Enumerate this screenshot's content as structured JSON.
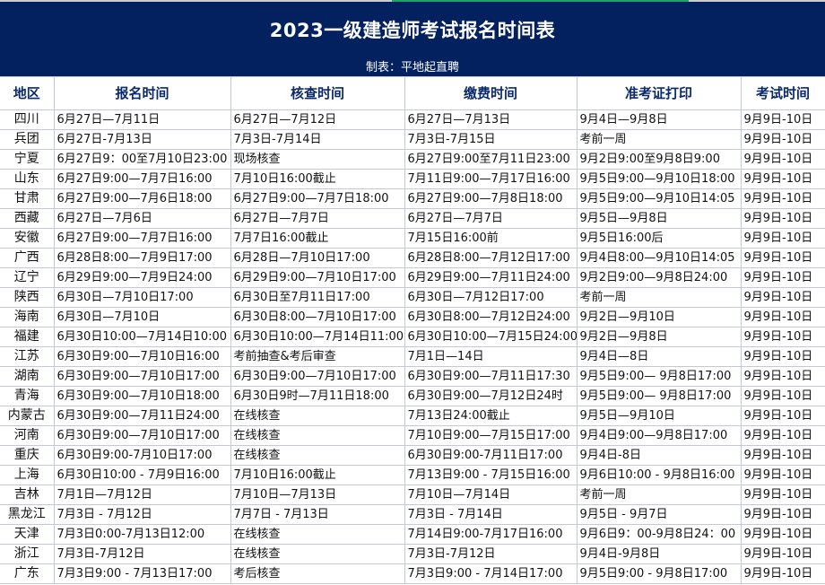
{
  "header": {
    "title": "2023一级建造师考试报名时间表",
    "maker": "制表：平地起直聘"
  },
  "colors": {
    "banner": "#03215e",
    "header_text": "#0b2a6a",
    "grid": "#c3c9da"
  },
  "table": {
    "columns": [
      "地区",
      "报名时间",
      "核查时间",
      "缴费时间",
      "准考证打印",
      "考试时间"
    ],
    "rows": [
      [
        "四川",
        "6月27日—7月11日",
        "6月27日—7月12日",
        "6月27日—7月13日",
        "9月4日—9月8日",
        "9月9日-10日"
      ],
      [
        "兵团",
        "6月27日-7月13日",
        "7月3日-7月14日",
        "7月3日-7月15日",
        "考前一周",
        "9月9日-10日"
      ],
      [
        "宁夏",
        "6月27日9：00至7月10日23:00",
        "现场核查",
        "6月27日9:00至7月11日23:00",
        "9月2日9:00至9月8日9:00",
        "9月9日-10日"
      ],
      [
        "山东",
        "6月27日9:00—7月7日16:00",
        "7月10日16:00截止",
        "7月11日9:00—7月17日16:00",
        "9月5日9:00—9月10日18:00",
        "9月9日-10日"
      ],
      [
        "甘肃",
        "6月27日9:00—7月6日18:00",
        "6月27日9:00—7月7日18:00",
        "6月27日9:00—7月8日18:00",
        "9月5日9:00—9月10日14:05",
        "9月9日-10日"
      ],
      [
        "西藏",
        "6月27日—7月6日",
        "6月27日—7月7日",
        "6月27日—7月7日",
        "9月5日—9月8日",
        "9月9日-10日"
      ],
      [
        "安徽",
        "6月27日9:00—7月7日16:00",
        "7月7日16:00截止",
        "7月15日16:00前",
        "9月5日16:00后",
        "9月9日-10日"
      ],
      [
        "广西",
        "6月28日8:00—7月9日17:00",
        "6月28日—7月10日17:00",
        "6月28日8:00—7月12日17:00",
        "9月4日8:00—9月10日14:05",
        "9月9日-10日"
      ],
      [
        "辽宁",
        "6月29日9:00—7月9日24:00",
        "6月29日9:00—7月10日17:00",
        "6月29日9:00—7月11日24:00",
        "9月2日9:00—9月8日24:00",
        "9月9日-10日"
      ],
      [
        "陕西",
        "6月30日—7月10日17:00",
        "6月30日至7月11日17:00",
        "6月30日—7月12日17:00",
        "考前一周",
        "9月9日-10日"
      ],
      [
        "海南",
        "6月30日—7月10日",
        "6月30日8:00—7月10日17:00",
        "6月30日8:00—7月12日24:00",
        "9月2日—9月10日",
        "9月9日-10日"
      ],
      [
        "福建",
        "6月30日10:00—7月14日10:00",
        "6月30日10:00—7月14日11:00",
        "6月30日10:00—7月15日24:00",
        "9月2日—9月8日",
        "9月9日-10日"
      ],
      [
        "江苏",
        "6月30日9:00—7月10日16:00",
        "考前抽查&考后审查",
        "7月1日—14日",
        "9月4日—8日",
        "9月9日-10日"
      ],
      [
        "湖南",
        "6月30日9:00—7月10日17:00",
        "6月30日9:00—7月10日17:00",
        "6月30日9:00—7月11日17:30",
        "9月5日9:00— 9月8日17:00",
        "9月9日-10日"
      ],
      [
        "青海",
        "6月30日9:00—7月10日18:00",
        "6月30日9时—7月11日18:00",
        "6月30日9:00—7月12日24时",
        "9月5日9:00— 9月8日17:00",
        "9月9日-10日"
      ],
      [
        "内蒙古",
        "6月30日9:00—7月11日24:00",
        "在线核查",
        "7月13日24:00截止",
        "9月5日—9月10日",
        "9月9日-10日"
      ],
      [
        "河南",
        "6月30日9:00—7月10日17:00",
        "在线核查",
        "7月10日9:00—7月15日17:00",
        "9月4日9:00—9月8日17:00",
        "9月9日-10日"
      ],
      [
        "重庆",
        "6月30日9:00-7月10日17:00",
        "在线核查",
        "6月30日9:00-7月11日17:00",
        "9月4日-8日",
        "9月9日-10日"
      ],
      [
        "上海",
        "6月30日10:00 - 7月9日16:00",
        "7月10日16:00截止",
        "7月13日9:00 - 7月15日16:00",
        "9月6日10:00 - 9月8日16:00",
        "9月9日-10日"
      ],
      [
        "吉林",
        "7月1日—7月12日",
        "7月10日—7月13日",
        "7月10日—7月14日",
        "考前一周",
        "9月9日-10日"
      ],
      [
        "黑龙江",
        "7月3日 - 7月12日",
        "7月7日 - 7月13日",
        "7月3日 - 7月14日",
        "9月5日 - 9月7日",
        "9月9日-10日"
      ],
      [
        "天津",
        "7月3日0:00-7月13日12:00",
        "在线核查",
        "7月14日9:00-7月17日16:00",
        "9月6日9：00-9月8日24：00",
        "9月9日-10日"
      ],
      [
        "浙江",
        "7月3日-7月12日",
        "在线核查",
        "7月3日-7月12日",
        "9月4日-9月8日",
        "9月9日-10日"
      ],
      [
        "广东",
        "7月3日9:00 - 7月13日17:00",
        "考后核查",
        "7月3日9:00 - 7月14日17:00",
        "9月5日9:00 - 9月8日17:00",
        "9月9日-10日"
      ]
    ]
  }
}
